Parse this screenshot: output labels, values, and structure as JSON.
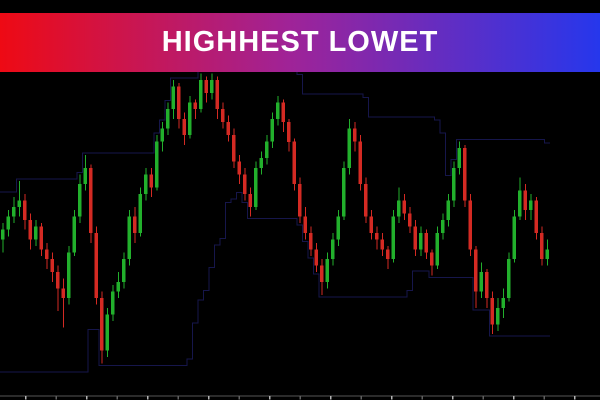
{
  "banner": {
    "title": "HIGHHEST LOWET",
    "text_color": "#ffffff",
    "gradient_left": "#ee0a14",
    "gradient_mid": "#a02397",
    "gradient_right": "#2637ec"
  },
  "chart_data": {
    "type": "candlestick",
    "title": "HIGHHEST LOWET",
    "background": "#000000",
    "up_color": "#22b02c",
    "down_color": "#d42a23",
    "channel_color": "#16164b",
    "channel_period": 16,
    "channel_pre_high": 62,
    "channel_pre_low": 8,
    "ylim": [
      0,
      100
    ],
    "grid": false,
    "legend": "none",
    "axis": {
      "y": 396,
      "line_color": "#565656",
      "tick_start": 25.5,
      "tick_spacing": 30.5,
      "tick_len": 3.5,
      "tick_colors": [
        "#b5b5b5",
        "#606060"
      ]
    },
    "candles": [
      [
        48,
        53,
        44,
        51
      ],
      [
        51,
        57,
        49,
        55
      ],
      [
        55,
        61,
        53,
        58
      ],
      [
        58,
        66,
        55,
        60
      ],
      [
        60,
        62,
        51,
        54
      ],
      [
        54,
        56,
        45,
        48
      ],
      [
        48,
        54,
        46,
        52
      ],
      [
        52,
        53,
        43,
        45
      ],
      [
        45,
        47,
        39,
        42
      ],
      [
        42,
        44,
        35,
        38
      ],
      [
        38,
        40,
        26,
        33
      ],
      [
        33,
        36,
        21,
        30
      ],
      [
        30,
        46,
        28,
        44
      ],
      [
        44,
        57,
        43,
        55
      ],
      [
        55,
        68,
        53,
        65
      ],
      [
        65,
        74,
        63,
        70
      ],
      [
        70,
        71,
        47,
        50
      ],
      [
        50,
        52,
        28,
        30
      ],
      [
        30,
        32,
        10,
        14
      ],
      [
        14,
        27,
        12,
        25
      ],
      [
        25,
        34,
        23,
        32
      ],
      [
        32,
        38,
        30,
        35
      ],
      [
        35,
        44,
        33,
        42
      ],
      [
        42,
        57,
        40,
        55
      ],
      [
        55,
        58,
        47,
        50
      ],
      [
        50,
        64,
        49,
        62
      ],
      [
        62,
        70,
        60,
        68
      ],
      [
        68,
        70,
        61,
        64
      ],
      [
        64,
        80,
        63,
        78
      ],
      [
        78,
        84,
        75,
        82
      ],
      [
        82,
        90,
        80,
        88
      ],
      [
        88,
        97,
        85,
        95
      ],
      [
        95,
        96,
        82,
        85
      ],
      [
        85,
        87,
        77,
        80
      ],
      [
        80,
        92,
        79,
        90
      ],
      [
        90,
        91,
        85,
        88
      ],
      [
        88,
        99,
        87,
        97
      ],
      [
        97,
        98,
        90,
        93
      ],
      [
        93,
        99,
        91,
        97
      ],
      [
        97,
        98,
        85,
        88
      ],
      [
        88,
        90,
        82,
        84
      ],
      [
        84,
        86,
        78,
        80
      ],
      [
        80,
        82,
        70,
        72
      ],
      [
        72,
        74,
        65,
        68
      ],
      [
        68,
        70,
        60,
        62
      ],
      [
        62,
        64,
        55,
        58
      ],
      [
        58,
        72,
        57,
        70
      ],
      [
        70,
        75,
        68,
        73
      ],
      [
        73,
        80,
        71,
        78
      ],
      [
        78,
        87,
        76,
        85
      ],
      [
        85,
        92,
        83,
        90
      ],
      [
        90,
        91,
        81,
        84
      ],
      [
        84,
        85,
        75,
        78
      ],
      [
        78,
        79,
        63,
        65
      ],
      [
        65,
        67,
        53,
        55
      ],
      [
        55,
        58,
        48,
        50
      ],
      [
        50,
        52,
        43,
        45
      ],
      [
        45,
        47,
        38,
        40
      ],
      [
        40,
        42,
        31,
        35
      ],
      [
        35,
        44,
        33,
        42
      ],
      [
        42,
        50,
        40,
        48
      ],
      [
        48,
        57,
        46,
        55
      ],
      [
        55,
        72,
        54,
        70
      ],
      [
        70,
        85,
        68,
        82
      ],
      [
        82,
        84,
        75,
        78
      ],
      [
        78,
        80,
        63,
        65
      ],
      [
        65,
        67,
        53,
        55
      ],
      [
        55,
        57,
        48,
        50
      ],
      [
        50,
        52,
        45,
        48
      ],
      [
        48,
        50,
        43,
        45
      ],
      [
        45,
        46,
        39,
        42
      ],
      [
        42,
        57,
        41,
        55
      ],
      [
        55,
        64,
        53,
        60
      ],
      [
        60,
        62,
        54,
        56
      ],
      [
        56,
        58,
        50,
        52
      ],
      [
        52,
        54,
        43,
        45
      ],
      [
        45,
        52,
        43,
        50
      ],
      [
        50,
        51,
        42,
        44
      ],
      [
        44,
        45,
        37,
        40
      ],
      [
        40,
        52,
        39,
        50
      ],
      [
        50,
        56,
        48,
        54
      ],
      [
        54,
        62,
        52,
        60
      ],
      [
        60,
        72,
        58,
        70
      ],
      [
        70,
        78,
        68,
        76
      ],
      [
        76,
        77,
        58,
        60
      ],
      [
        60,
        62,
        43,
        45
      ],
      [
        45,
        46,
        27,
        32
      ],
      [
        32,
        41,
        30,
        38
      ],
      [
        38,
        39,
        27,
        30
      ],
      [
        30,
        32,
        19,
        22
      ],
      [
        22,
        30,
        20,
        27
      ],
      [
        27,
        33,
        24,
        30
      ],
      [
        30,
        44,
        29,
        42
      ],
      [
        42,
        57,
        41,
        55
      ],
      [
        55,
        67,
        54,
        63
      ],
      [
        63,
        65,
        54,
        57
      ],
      [
        57,
        62,
        54,
        60
      ],
      [
        60,
        61,
        48,
        50
      ],
      [
        50,
        52,
        40,
        42
      ],
      [
        42,
        48,
        40,
        45
      ]
    ]
  }
}
